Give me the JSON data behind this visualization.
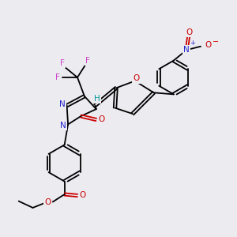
{
  "bg_color": "#ebebf0",
  "atom_colors": {
    "C": "#000000",
    "N": "#2222cc",
    "O": "#cc0000",
    "F": "#cc44cc",
    "H": "#009999"
  }
}
